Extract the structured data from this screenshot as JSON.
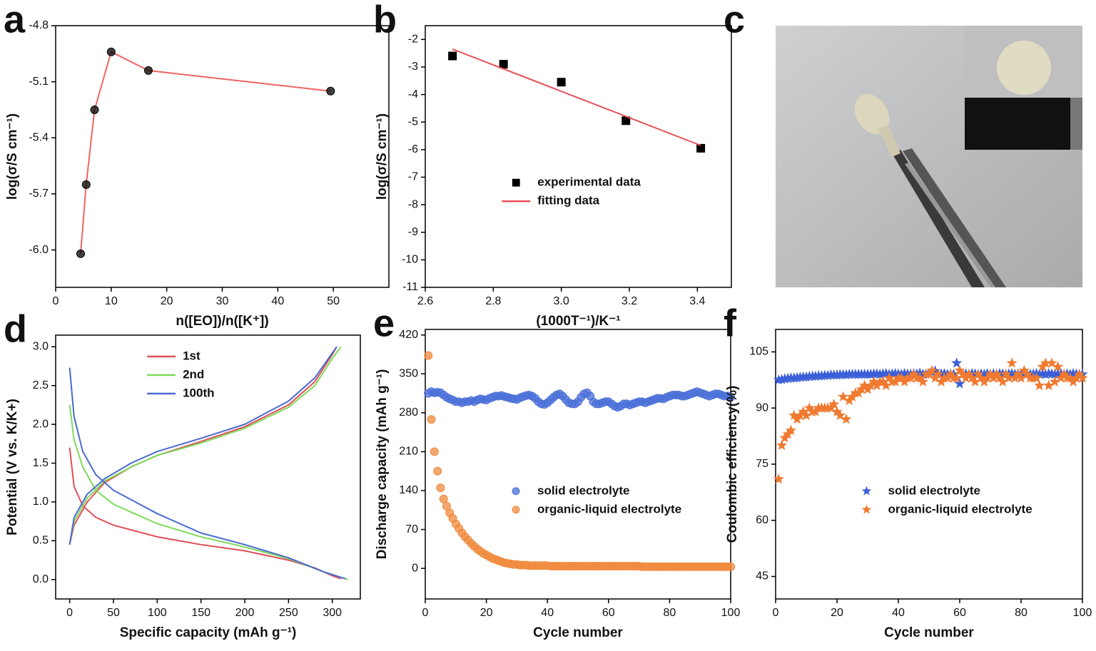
{
  "chart_data": [
    {
      "type": "line",
      "panel": "a",
      "xlabel": "n([EO])/n([K⁺])",
      "ylabel": "log(σ/S cm⁻¹)",
      "xlim": [
        0,
        60
      ],
      "xticks": [
        0,
        10,
        20,
        30,
        40,
        50
      ],
      "ylim": [
        -6.2,
        -4.8
      ],
      "yticks": [
        -4.8,
        -5.1,
        -5.4,
        -5.7,
        {
          "value": -6,
          "label": "-6.0"
        }
      ],
      "series": [
        {
          "color": "#f06464",
          "marker": "circle",
          "marker_color": "#000000",
          "mode": "lines+markers",
          "x": [
            4.5,
            5.5,
            7,
            10,
            16.7,
            49.5
          ],
          "values": [
            -6.02,
            -5.65,
            -5.25,
            -4.94,
            -5.04,
            -5.15
          ]
        }
      ]
    },
    {
      "type": "scatter",
      "panel": "b",
      "xlabel": "(1000T⁻¹)/K⁻¹",
      "ylabel": "log(σ/S cm⁻¹)",
      "xlim": [
        2.6,
        3.5
      ],
      "xticks": [
        2.6,
        2.8,
        {
          "value": 3,
          "label": "3.0"
        },
        3.2,
        3.4
      ],
      "ylim": [
        -11,
        -1.5
      ],
      "yticks": [
        -2,
        -3,
        -4,
        -5,
        -6,
        -7,
        -8,
        -9,
        -10,
        -11
      ],
      "legend": "center",
      "series": [
        {
          "name": "experimental data",
          "color": "#000000",
          "marker": "square",
          "mode": "markers",
          "x": [
            2.68,
            2.83,
            3.0,
            3.19,
            3.41
          ],
          "values": [
            -2.6,
            -2.9,
            -3.55,
            -4.95,
            -5.95
          ]
        },
        {
          "name": "fitting data",
          "color": "#e8505a",
          "mode": "lines",
          "x": [
            2.68,
            3.41
          ],
          "values": [
            -2.35,
            -5.85
          ]
        }
      ]
    },
    {
      "type": "line",
      "panel": "d",
      "xlabel": "Specific capacity (mAh g⁻¹)",
      "ylabel": "Potential (V vs. K/K+)",
      "xlim": [
        -16,
        332
      ],
      "xticks": [
        0,
        50,
        100,
        150,
        200,
        250,
        300
      ],
      "ylim": [
        -0.25,
        3.15
      ],
      "yticks": [
        {
          "value": 0,
          "label": "0.0"
        },
        0.5,
        {
          "value": 1,
          "label": "1.0"
        },
        1.5,
        {
          "value": 2,
          "label": "2.0"
        },
        2.5,
        {
          "value": 3,
          "label": "3.0"
        }
      ],
      "legend": "upper left",
      "series": [
        {
          "name": "1st",
          "color": "#e0505a",
          "mode": "lines",
          "x": [
            0,
            5,
            15,
            30,
            50,
            100,
            150,
            200,
            250,
            280,
            300,
            310,
            null,
            0,
            5,
            20,
            40,
            70,
            100,
            150,
            200,
            250,
            280,
            300,
            305
          ],
          "values": [
            1.7,
            1.2,
            0.95,
            0.8,
            0.7,
            0.55,
            0.45,
            0.37,
            0.25,
            0.15,
            0.05,
            0.01,
            null,
            0.45,
            0.7,
            1.0,
            1.25,
            1.45,
            1.6,
            1.78,
            1.97,
            2.25,
            2.55,
            2.9,
            3.0
          ]
        },
        {
          "name": "2nd",
          "color": "#7ddb5a",
          "mode": "lines",
          "x": [
            0,
            5,
            15,
            30,
            50,
            100,
            150,
            200,
            250,
            290,
            318,
            null,
            0,
            5,
            20,
            40,
            70,
            100,
            150,
            200,
            250,
            280,
            300,
            310
          ],
          "values": [
            2.25,
            1.8,
            1.45,
            1.15,
            0.97,
            0.72,
            0.55,
            0.42,
            0.27,
            0.1,
            0.0,
            null,
            0.45,
            0.75,
            1.05,
            1.27,
            1.45,
            1.6,
            1.76,
            1.95,
            2.22,
            2.5,
            2.85,
            3.0
          ]
        },
        {
          "name": "100th",
          "color": "#4a6ad0",
          "mode": "lines",
          "x": [
            0,
            5,
            15,
            30,
            50,
            100,
            150,
            200,
            250,
            290,
            315,
            null,
            0,
            5,
            20,
            40,
            70,
            100,
            150,
            200,
            250,
            280,
            305
          ],
          "values": [
            2.73,
            2.1,
            1.65,
            1.35,
            1.15,
            0.85,
            0.6,
            0.45,
            0.28,
            0.1,
            0.01,
            null,
            0.45,
            0.8,
            1.1,
            1.3,
            1.5,
            1.65,
            1.82,
            2.0,
            2.3,
            2.6,
            3.0
          ]
        }
      ]
    },
    {
      "type": "scatter",
      "panel": "e",
      "xlabel": "Cycle number",
      "ylabel": "Discharge capacity (mAh g⁻¹)",
      "xlim": [
        0,
        100
      ],
      "xticks": [
        0,
        20,
        40,
        60,
        80,
        100
      ],
      "ylim": [
        -55,
        430
      ],
      "yticks": [
        0,
        70,
        140,
        210,
        280,
        350,
        420
      ],
      "legend": "center",
      "x": [
        1,
        2,
        3,
        4,
        5,
        6,
        7,
        8,
        9,
        10,
        11,
        12,
        13,
        14,
        15,
        16,
        17,
        18,
        19,
        20,
        21,
        22,
        23,
        24,
        25,
        26,
        27,
        28,
        29,
        30,
        31,
        32,
        33,
        34,
        35,
        36,
        37,
        38,
        39,
        40,
        41,
        42,
        43,
        44,
        45,
        46,
        47,
        48,
        49,
        50,
        51,
        52,
        53,
        54,
        55,
        56,
        57,
        58,
        59,
        60,
        61,
        62,
        63,
        64,
        65,
        66,
        67,
        68,
        69,
        70,
        71,
        72,
        73,
        74,
        75,
        76,
        77,
        78,
        79,
        80,
        81,
        82,
        83,
        84,
        85,
        86,
        87,
        88,
        89,
        90,
        91,
        92,
        93,
        94,
        95,
        96,
        97,
        98,
        99,
        100
      ],
      "series": [
        {
          "name": "solid electrolyte",
          "color": "#4a6fd8",
          "marker": "circle",
          "mode": "markers",
          "values": [
            315,
            318,
            316,
            317,
            316,
            312,
            308,
            305,
            303,
            300,
            300,
            298,
            300,
            300,
            302,
            300,
            303,
            305,
            304,
            303,
            306,
            308,
            310,
            310,
            311,
            309,
            308,
            306,
            305,
            304,
            307,
            309,
            311,
            312,
            310,
            306,
            300,
            296,
            295,
            298,
            303,
            308,
            312,
            314,
            310,
            304,
            298,
            296,
            296,
            300,
            308,
            314,
            316,
            310,
            300,
            296,
            296,
            298,
            300,
            300,
            296,
            292,
            290,
            292,
            296,
            296,
            294,
            296,
            298,
            300,
            300,
            298,
            300,
            302,
            304,
            306,
            306,
            305,
            308,
            310,
            312,
            312,
            312,
            310,
            310,
            312,
            314,
            316,
            318,
            316,
            314,
            312,
            310,
            312,
            314,
            314,
            312,
            310,
            310,
            308
          ]
        },
        {
          "name": "organic-liquid electrolyte",
          "color": "#f08a3c",
          "marker": "circle",
          "mode": "markers",
          "values": [
            383,
            268,
            210,
            175,
            145,
            125,
            112,
            100,
            90,
            80,
            72,
            64,
            57,
            51,
            45,
            40,
            35,
            31,
            27,
            24,
            21,
            18,
            16,
            14,
            12,
            10,
            9,
            8,
            7,
            7,
            6,
            6,
            6,
            5,
            5,
            5,
            5,
            5,
            5,
            5,
            4,
            4,
            4,
            4,
            4,
            4,
            4,
            4,
            4,
            4,
            4,
            4,
            4,
            4,
            4,
            4,
            4,
            4,
            4,
            4,
            4,
            4,
            4,
            4,
            4,
            4,
            4,
            4,
            4,
            4,
            3,
            3,
            3,
            3,
            3,
            3,
            3,
            3,
            3,
            3,
            3,
            3,
            3,
            3,
            3,
            3,
            3,
            3,
            3,
            3,
            3,
            3,
            3,
            3,
            3,
            3,
            3,
            3,
            3,
            3
          ]
        }
      ]
    },
    {
      "type": "scatter",
      "panel": "f",
      "xlabel": "Cycle number",
      "ylabel": "Coulombic efficiency(%)",
      "xlim": [
        0,
        100
      ],
      "xticks": [
        0,
        20,
        40,
        60,
        80,
        100
      ],
      "ylim": [
        39,
        111
      ],
      "yticks": [
        45,
        60,
        75,
        90,
        105
      ],
      "legend": "center",
      "x": [
        1,
        2,
        3,
        4,
        5,
        6,
        7,
        8,
        9,
        10,
        11,
        12,
        13,
        14,
        15,
        16,
        17,
        18,
        19,
        20,
        21,
        22,
        23,
        24,
        25,
        26,
        27,
        28,
        29,
        30,
        31,
        32,
        33,
        34,
        35,
        36,
        37,
        38,
        39,
        40,
        41,
        42,
        43,
        44,
        45,
        46,
        47,
        48,
        49,
        50,
        51,
        52,
        53,
        54,
        55,
        56,
        57,
        58,
        59,
        60,
        61,
        62,
        63,
        64,
        65,
        66,
        67,
        68,
        69,
        70,
        71,
        72,
        73,
        74,
        75,
        76,
        77,
        78,
        79,
        80,
        81,
        82,
        83,
        84,
        85,
        86,
        87,
        88,
        89,
        90,
        91,
        92,
        93,
        94,
        95,
        96,
        97,
        98,
        99,
        100
      ],
      "series": [
        {
          "name": "solid electrolyte",
          "color": "#3b5fd8",
          "marker": "star",
          "mode": "markers",
          "values": [
            97.5,
            97.6,
            97.8,
            97.9,
            98,
            98,
            98.1,
            98.2,
            98.3,
            98.3,
            98.4,
            98.5,
            98.5,
            98.6,
            98.6,
            98.7,
            98.7,
            98.8,
            98.8,
            98.8,
            98.9,
            98.9,
            98.9,
            99,
            99,
            99,
            99,
            99,
            99,
            99,
            99,
            99.1,
            99.1,
            99,
            99.1,
            99.2,
            99,
            99.1,
            99.2,
            99.1,
            99,
            99.2,
            99.1,
            99,
            99.2,
            99.1,
            99.3,
            99,
            99.1,
            99.2,
            99.5,
            99.9,
            99,
            99.1,
            99.2,
            99,
            99.1,
            99,
            102,
            96.5,
            99,
            99.1,
            99,
            99.2,
            99.1,
            99,
            99.1,
            99,
            99.2,
            99,
            99.1,
            99,
            99.2,
            99.1,
            99,
            99.1,
            99.2,
            99,
            99.1,
            99,
            99.2,
            99.1,
            99,
            99.1,
            99.2,
            99,
            99.1,
            99,
            99.2,
            99.1,
            99,
            99.1,
            99.2,
            99,
            99.1,
            99,
            99.2,
            99.1,
            99,
            99
          ]
        },
        {
          "name": "organic-liquid electrolyte",
          "color": "#f07a30",
          "marker": "star",
          "mode": "markers",
          "values": [
            71,
            80,
            82,
            83,
            84,
            88,
            87,
            88,
            89,
            88,
            90,
            89,
            89,
            90,
            90,
            90,
            90,
            90,
            91,
            89,
            88,
            93,
            87,
            92,
            93,
            94,
            94,
            95,
            96,
            95,
            96,
            97,
            96,
            97,
            97,
            96,
            98,
            97,
            97,
            98,
            98,
            97,
            98,
            98,
            99,
            98,
            98,
            97,
            99,
            99,
            100,
            98,
            99,
            97,
            98,
            98,
            99,
            98,
            98,
            100,
            99,
            98,
            99,
            98,
            97,
            99,
            98,
            97,
            98,
            99,
            98,
            99,
            98,
            97,
            99,
            98,
            102,
            98,
            99,
            98,
            100,
            99,
            98,
            98,
            98,
            96,
            101,
            102,
            96,
            102,
            97,
            101,
            98,
            99,
            98,
            98,
            97,
            98,
            99,
            98
          ]
        }
      ]
    }
  ],
  "photo": {
    "panel": "c"
  }
}
